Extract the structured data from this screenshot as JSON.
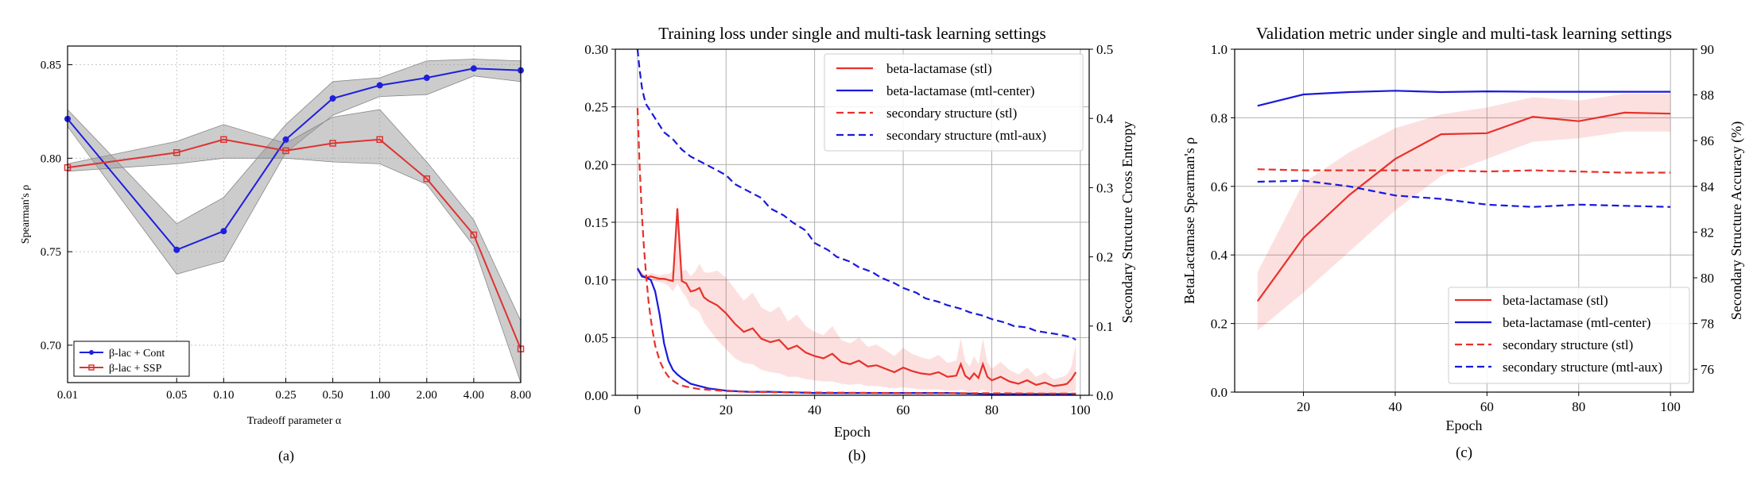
{
  "chart_data": [
    {
      "type": "line",
      "panel_label": "(a)",
      "title": "",
      "xlabel": "Tradeoff parameter α",
      "ylabel": "Spearman's ρ",
      "xscale": "log",
      "xlim": [
        0.01,
        8.0
      ],
      "ylim": [
        0.68,
        0.86
      ],
      "xticks": [
        "0.01",
        "0.05",
        "0.10",
        "0.25",
        "0.50",
        "1.00",
        "2.00",
        "4.00",
        "8.00"
      ],
      "yticks": [
        "0.70",
        "0.75",
        "0.80",
        "0.85"
      ],
      "grid": true,
      "legend": "bottom-left",
      "x": [
        0.01,
        0.05,
        0.1,
        0.25,
        0.5,
        1.0,
        2.0,
        4.0,
        8.0
      ],
      "series": [
        {
          "name": "β-lac + Cont",
          "color": "#1f1fdd",
          "marker": "circle",
          "values": [
            0.821,
            0.751,
            0.761,
            0.81,
            0.832,
            0.839,
            0.843,
            0.848,
            0.847
          ],
          "band_low": [
            0.817,
            0.738,
            0.745,
            0.803,
            0.823,
            0.833,
            0.834,
            0.844,
            0.841
          ],
          "band_high": [
            0.826,
            0.765,
            0.779,
            0.818,
            0.841,
            0.843,
            0.852,
            0.853,
            0.852
          ]
        },
        {
          "name": "β-lac + SSP",
          "color": "#dd3333",
          "marker": "square",
          "values": [
            0.795,
            0.803,
            0.81,
            0.804,
            0.808,
            0.81,
            0.789,
            0.759,
            0.698
          ],
          "band_low": [
            0.793,
            0.797,
            0.8,
            0.8,
            0.798,
            0.797,
            0.786,
            0.753,
            0.68
          ],
          "band_high": [
            0.797,
            0.809,
            0.818,
            0.808,
            0.822,
            0.826,
            0.798,
            0.767,
            0.713
          ]
        }
      ]
    },
    {
      "type": "line",
      "panel_label": "(b)",
      "title": "Training loss under single and multi-task learning settings",
      "xlabel": "Epoch",
      "ylabel": "",
      "y2label": "Secondary Structure Cross Entropy",
      "xlim": [
        -5,
        102
      ],
      "ylim": [
        0,
        0.3
      ],
      "y2lim": [
        0,
        0.5
      ],
      "xticks": [
        "0",
        "20",
        "40",
        "60",
        "80",
        "100"
      ],
      "yticks": [
        "0.00",
        "0.05",
        "0.10",
        "0.15",
        "0.20",
        "0.25",
        "0.30"
      ],
      "y2ticks": [
        "0.0",
        "0.1",
        "0.2",
        "0.3",
        "0.4",
        "0.5"
      ],
      "grid": true,
      "legend": "top-right",
      "series": [
        {
          "name": "beta-lactamase (stl)",
          "color": "#e8312b",
          "dash": "solid",
          "axis": "left",
          "x": [
            0,
            1,
            2,
            3,
            4,
            5,
            6,
            7,
            8,
            9,
            10,
            11,
            12,
            13,
            14,
            15,
            16,
            18,
            20,
            22,
            24,
            26,
            28,
            30,
            32,
            34,
            36,
            38,
            40,
            42,
            44,
            46,
            48,
            50,
            52,
            54,
            56,
            58,
            60,
            62,
            64,
            66,
            68,
            70,
            72,
            73,
            74,
            75,
            76,
            77,
            78,
            79,
            80,
            82,
            84,
            86,
            88,
            90,
            92,
            94,
            96,
            97,
            98,
            99
          ],
          "values": [
            0.11,
            0.104,
            0.102,
            0.103,
            0.102,
            0.101,
            0.101,
            0.1,
            0.099,
            0.162,
            0.099,
            0.097,
            0.09,
            0.091,
            0.093,
            0.085,
            0.082,
            0.078,
            0.071,
            0.062,
            0.055,
            0.058,
            0.049,
            0.046,
            0.048,
            0.04,
            0.043,
            0.037,
            0.034,
            0.032,
            0.036,
            0.029,
            0.027,
            0.03,
            0.025,
            0.026,
            0.023,
            0.02,
            0.024,
            0.021,
            0.019,
            0.018,
            0.02,
            0.016,
            0.017,
            0.027,
            0.017,
            0.014,
            0.019,
            0.015,
            0.027,
            0.016,
            0.013,
            0.016,
            0.012,
            0.01,
            0.013,
            0.009,
            0.011,
            0.008,
            0.009,
            0.01,
            0.014,
            0.02
          ],
          "band_low": [
            0.108,
            0.102,
            0.1,
            0.1,
            0.099,
            0.098,
            0.097,
            0.095,
            0.09,
            0.097,
            0.09,
            0.085,
            0.077,
            0.075,
            0.072,
            0.063,
            0.058,
            0.048,
            0.04,
            0.032,
            0.028,
            0.027,
            0.022,
            0.02,
            0.019,
            0.016,
            0.016,
            0.014,
            0.013,
            0.012,
            0.012,
            0.01,
            0.009,
            0.01,
            0.008,
            0.008,
            0.007,
            0.006,
            0.007,
            0.006,
            0.005,
            0.005,
            0.005,
            0.004,
            0.004,
            0.005,
            0.004,
            0.003,
            0.004,
            0.003,
            0.005,
            0.003,
            0.003,
            0.003,
            0.002,
            0.002,
            0.002,
            0.002,
            0.002,
            0.002,
            0.002,
            0.002,
            0.003,
            0.004
          ],
          "band_high": [
            0.112,
            0.106,
            0.104,
            0.106,
            0.105,
            0.104,
            0.105,
            0.105,
            0.108,
            0.168,
            0.108,
            0.109,
            0.103,
            0.107,
            0.114,
            0.107,
            0.106,
            0.108,
            0.102,
            0.092,
            0.082,
            0.089,
            0.076,
            0.072,
            0.077,
            0.064,
            0.07,
            0.06,
            0.055,
            0.052,
            0.06,
            0.048,
            0.045,
            0.05,
            0.042,
            0.044,
            0.039,
            0.034,
            0.041,
            0.036,
            0.033,
            0.031,
            0.035,
            0.028,
            0.03,
            0.049,
            0.03,
            0.025,
            0.034,
            0.027,
            0.049,
            0.029,
            0.023,
            0.029,
            0.022,
            0.018,
            0.024,
            0.016,
            0.02,
            0.014,
            0.016,
            0.018,
            0.025,
            0.045
          ]
        },
        {
          "name": "beta-lactamase (mtl-center)",
          "color": "#1a1adb",
          "dash": "solid",
          "axis": "left",
          "x": [
            0,
            1,
            2,
            3,
            4,
            5,
            6,
            7,
            8,
            9,
            10,
            12,
            14,
            16,
            18,
            20,
            25,
            30,
            40,
            50,
            60,
            70,
            80,
            90,
            99
          ],
          "values": [
            0.11,
            0.103,
            0.102,
            0.1,
            0.09,
            0.07,
            0.045,
            0.03,
            0.022,
            0.018,
            0.015,
            0.01,
            0.008,
            0.006,
            0.005,
            0.004,
            0.003,
            0.003,
            0.002,
            0.002,
            0.002,
            0.002,
            0.001,
            0.001,
            0.001
          ]
        },
        {
          "name": "secondary structure (stl)",
          "color": "#e8312b",
          "dash": "dashed",
          "axis": "right",
          "x": [
            0,
            0.5,
            1,
            1.5,
            2,
            2.5,
            3,
            3.5,
            4,
            5,
            6,
            7,
            8,
            9,
            10,
            12,
            14,
            16,
            18,
            20,
            25,
            30,
            40,
            50,
            60,
            70,
            80,
            90,
            99
          ],
          "values": [
            0.415,
            0.33,
            0.26,
            0.21,
            0.17,
            0.135,
            0.11,
            0.09,
            0.072,
            0.05,
            0.036,
            0.027,
            0.021,
            0.017,
            0.014,
            0.011,
            0.009,
            0.008,
            0.007,
            0.006,
            0.005,
            0.0045,
            0.004,
            0.0035,
            0.003,
            0.003,
            0.003,
            0.0025,
            0.0025
          ]
        },
        {
          "name": "secondary structure (mtl-aux)",
          "color": "#1a1adb",
          "dash": "dashed",
          "axis": "right",
          "x": [
            0,
            0.5,
            1,
            1.5,
            2,
            3,
            4,
            5,
            6,
            8,
            10,
            12,
            15,
            18,
            20,
            22,
            25,
            28,
            30,
            33,
            35,
            38,
            40,
            43,
            45,
            48,
            50,
            53,
            55,
            58,
            60,
            63,
            65,
            68,
            70,
            73,
            75,
            78,
            80,
            83,
            85,
            88,
            90,
            93,
            95,
            98,
            99
          ],
          "values": [
            0.5,
            0.47,
            0.445,
            0.43,
            0.42,
            0.41,
            0.4,
            0.39,
            0.38,
            0.37,
            0.355,
            0.345,
            0.335,
            0.325,
            0.318,
            0.305,
            0.295,
            0.285,
            0.27,
            0.26,
            0.25,
            0.238,
            0.22,
            0.21,
            0.2,
            0.193,
            0.185,
            0.178,
            0.17,
            0.162,
            0.155,
            0.148,
            0.14,
            0.135,
            0.13,
            0.125,
            0.12,
            0.115,
            0.11,
            0.105,
            0.1,
            0.098,
            0.093,
            0.09,
            0.088,
            0.084,
            0.08
          ]
        }
      ]
    },
    {
      "type": "line",
      "panel_label": "(c)",
      "title": "Validation metric under single and multi-task learning settings",
      "xlabel": "Epoch",
      "ylabel": "BetaLactamase Spearman's ρ",
      "y2label": "Secondary Structure Accuracy (%)",
      "xlim": [
        5,
        105
      ],
      "ylim": [
        0,
        1.0
      ],
      "y2lim": [
        75,
        90
      ],
      "xticks": [
        "20",
        "40",
        "60",
        "80",
        "100"
      ],
      "yticks": [
        "0.0",
        "0.2",
        "0.4",
        "0.6",
        "0.8",
        "1.0"
      ],
      "y2ticks": [
        "76",
        "78",
        "80",
        "82",
        "84",
        "86",
        "88",
        "90"
      ],
      "grid": true,
      "legend": "bottom-right",
      "x": [
        10,
        20,
        30,
        40,
        50,
        60,
        70,
        80,
        90,
        100
      ],
      "series": [
        {
          "name": "beta-lactamase (stl)",
          "color": "#e8312b",
          "dash": "solid",
          "axis": "left",
          "values": [
            0.265,
            0.45,
            0.575,
            0.68,
            0.752,
            0.755,
            0.803,
            0.79,
            0.815,
            0.812
          ],
          "band_low": [
            0.18,
            0.29,
            0.41,
            0.53,
            0.63,
            0.68,
            0.73,
            0.74,
            0.76,
            0.76
          ],
          "band_high": [
            0.35,
            0.61,
            0.7,
            0.77,
            0.81,
            0.83,
            0.86,
            0.85,
            0.87,
            0.87
          ]
        },
        {
          "name": "beta-lactamase (mtl-center)",
          "color": "#1a1adb",
          "dash": "solid",
          "axis": "left",
          "values": [
            0.835,
            0.868,
            0.875,
            0.879,
            0.875,
            0.877,
            0.876,
            0.876,
            0.876,
            0.876
          ]
        },
        {
          "name": "secondary structure (stl)",
          "color": "#e8312b",
          "dash": "dashed",
          "axis": "right",
          "values": [
            84.75,
            84.7,
            84.7,
            84.7,
            84.7,
            84.65,
            84.7,
            84.65,
            84.6,
            84.6
          ]
        },
        {
          "name": "secondary structure (mtl-aux)",
          "color": "#1a1adb",
          "dash": "dashed",
          "axis": "right",
          "values": [
            84.2,
            84.25,
            84.0,
            83.6,
            83.45,
            83.2,
            83.1,
            83.2,
            83.15,
            83.1
          ]
        }
      ]
    }
  ]
}
